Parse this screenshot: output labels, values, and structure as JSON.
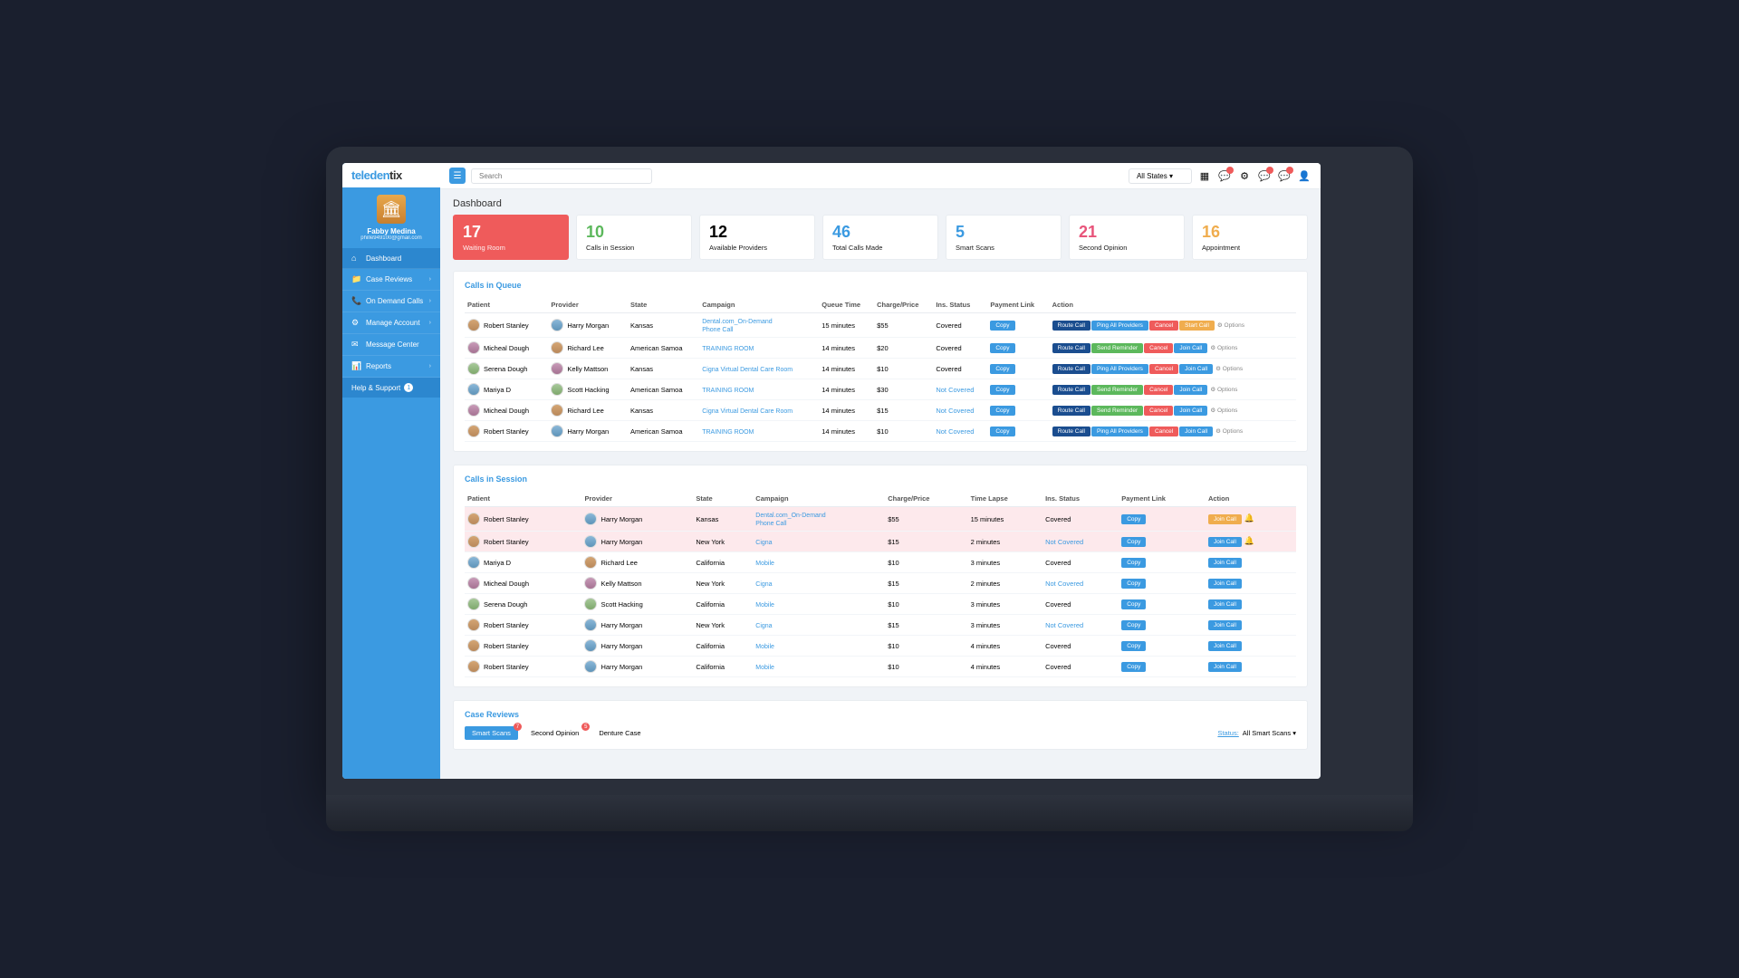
{
  "brand": {
    "prefix": "telede",
    "mid": "n",
    "suffix": "tix"
  },
  "profile": {
    "name": "Fabby Medina",
    "email": "phille949100@gmail.com"
  },
  "nav": [
    {
      "icon": "⌂",
      "label": "Dashboard",
      "active": true
    },
    {
      "icon": "📁",
      "label": "Case Reviews",
      "chevron": true
    },
    {
      "icon": "📞",
      "label": "On Demand Calls",
      "chevron": true
    },
    {
      "icon": "⚙",
      "label": "Manage Account",
      "chevron": true
    },
    {
      "icon": "✉",
      "label": "Message Center"
    },
    {
      "icon": "📊",
      "label": "Reports",
      "chevron": true
    }
  ],
  "help": {
    "label": "Help & Support",
    "badge": "1"
  },
  "topbar": {
    "search_placeholder": "Search",
    "state_filter": "All States"
  },
  "page_title": "Dashboard",
  "stats": [
    {
      "num": "17",
      "label": "Waiting Room",
      "variant": "red"
    },
    {
      "num": "10",
      "label": "Calls in Session",
      "color": "green"
    },
    {
      "num": "12",
      "label": "Available Providers"
    },
    {
      "num": "46",
      "label": "Total Calls Made",
      "color": "blue"
    },
    {
      "num": "5",
      "label": "Smart Scans",
      "color": "blue"
    },
    {
      "num": "21",
      "label": "Second Opinion",
      "color": "pink"
    },
    {
      "num": "16",
      "label": "Appointment",
      "color": "orange"
    }
  ],
  "queue": {
    "title": "Calls in Queue",
    "headers": [
      "Patient",
      "Provider",
      "State",
      "Campaign",
      "Queue Time",
      "Charge/Price",
      "Ins. Status",
      "Payment Link",
      "Action"
    ],
    "rows": [
      {
        "patient": "Robert Stanley",
        "pa": "a1",
        "provider": "Harry Morgan",
        "pra": "a2",
        "state": "Kansas",
        "campaign": "Dental.com_On-Demand",
        "campaign_sub": "Phone Call",
        "time": "15 minutes",
        "price": "$55",
        "ins": "Covered",
        "actions": [
          "route",
          "ping",
          "cancel",
          "start"
        ],
        "options": true
      },
      {
        "patient": "Micheal Dough",
        "pa": "a3",
        "provider": "Richard Lee",
        "pra": "a1",
        "state": "American Samoa",
        "campaign": "TRAINING ROOM",
        "time": "14 minutes",
        "price": "$20",
        "ins": "Covered",
        "actions": [
          "route",
          "send",
          "cancel",
          "join"
        ],
        "options": true
      },
      {
        "patient": "Serena Dough",
        "pa": "a4",
        "provider": "Kelly Mattson",
        "pra": "a3",
        "state": "Kansas",
        "campaign": "Cigna Virtual Dental Care Room",
        "time": "14 minutes",
        "price": "$10",
        "ins": "Covered",
        "actions": [
          "route",
          "ping",
          "cancel",
          "join"
        ],
        "options": true
      },
      {
        "patient": "Mariya D",
        "pa": "a2",
        "provider": "Scott Hacking",
        "pra": "a4",
        "state": "American Samoa",
        "campaign": "TRAINING ROOM",
        "time": "14 minutes",
        "price": "$30",
        "ins": "Not Covered",
        "nc": true,
        "actions": [
          "route",
          "send",
          "cancel",
          "join"
        ],
        "options": true
      },
      {
        "patient": "Micheal Dough",
        "pa": "a3",
        "provider": "Richard Lee",
        "pra": "a1",
        "state": "Kansas",
        "campaign": "Cigna Virtual Dental Care Room",
        "time": "14 minutes",
        "price": "$15",
        "ins": "Not Covered",
        "nc": true,
        "actions": [
          "route",
          "send",
          "cancel",
          "join"
        ],
        "options": true
      },
      {
        "patient": "Robert Stanley",
        "pa": "a1",
        "provider": "Harry Morgan",
        "pra": "a2",
        "state": "American Samoa",
        "campaign": "TRAINING ROOM",
        "time": "14 minutes",
        "price": "$10",
        "ins": "Not Covered",
        "nc": true,
        "actions": [
          "route",
          "ping",
          "cancel",
          "join"
        ],
        "options": true
      }
    ]
  },
  "session": {
    "title": "Calls in Session",
    "headers": [
      "Patient",
      "Provider",
      "State",
      "Campaign",
      "Charge/Price",
      "Time Lapse",
      "Ins. Status",
      "Payment Link",
      "Action"
    ],
    "rows": [
      {
        "patient": "Robert Stanley",
        "pa": "a1",
        "provider": "Harry Morgan",
        "pra": "a2",
        "state": "Kansas",
        "campaign": "Dental.com_On-Demand",
        "campaign_sub": "Phone Call",
        "price": "$55",
        "time": "15 minutes",
        "ins": "Covered",
        "btn": "join-warn",
        "bell": true,
        "highlight": true
      },
      {
        "patient": "Robert Stanley",
        "pa": "a1",
        "provider": "Harry Morgan",
        "pra": "a2",
        "state": "New York",
        "campaign": "Cigna",
        "price": "$15",
        "time": "2 minutes",
        "ins": "Not Covered",
        "nc": true,
        "btn": "join",
        "bell": true,
        "highlight": true
      },
      {
        "patient": "Mariya D",
        "pa": "a2",
        "provider": "Richard Lee",
        "pra": "a1",
        "state": "California",
        "campaign": "Mobile",
        "price": "$10",
        "time": "3 minutes",
        "ins": "Covered",
        "btn": "join"
      },
      {
        "patient": "Micheal Dough",
        "pa": "a3",
        "provider": "Kelly Mattson",
        "pra": "a3",
        "state": "New York",
        "campaign": "Cigna",
        "price": "$15",
        "time": "2 minutes",
        "ins": "Not Covered",
        "nc": true,
        "btn": "join"
      },
      {
        "patient": "Serena Dough",
        "pa": "a4",
        "provider": "Scott Hacking",
        "pra": "a4",
        "state": "California",
        "campaign": "Mobile",
        "price": "$10",
        "time": "3 minutes",
        "ins": "Covered",
        "btn": "join"
      },
      {
        "patient": "Robert Stanley",
        "pa": "a1",
        "provider": "Harry Morgan",
        "pra": "a2",
        "state": "New York",
        "campaign": "Cigna",
        "price": "$15",
        "time": "3 minutes",
        "ins": "Not Covered",
        "nc": true,
        "btn": "join"
      },
      {
        "patient": "Robert Stanley",
        "pa": "a1",
        "provider": "Harry Morgan",
        "pra": "a2",
        "state": "California",
        "campaign": "Mobile",
        "price": "$10",
        "time": "4 minutes",
        "ins": "Covered",
        "btn": "join"
      },
      {
        "patient": "Robert Stanley",
        "pa": "a1",
        "provider": "Harry Morgan",
        "pra": "a2",
        "state": "California",
        "campaign": "Mobile",
        "price": "$10",
        "time": "4 minutes",
        "ins": "Covered",
        "btn": "join"
      }
    ]
  },
  "case_reviews": {
    "title": "Case Reviews",
    "tabs": [
      {
        "label": "Smart Scans",
        "active": true,
        "badge": "7"
      },
      {
        "label": "Second Opinion",
        "badge": "5"
      },
      {
        "label": "Denture Case"
      }
    ],
    "status_label": "Status:",
    "status_value": "All Smart Scans"
  },
  "action_labels": {
    "route": "Route Call",
    "ping": "Ping All Providers",
    "send": "Send Reminder",
    "cancel": "Cancel",
    "start": "Start Call",
    "join": "Join Call",
    "copy": "Copy",
    "options": "⚙ Options"
  },
  "action_colors": {
    "route": "btn-route",
    "ping": "btn-ping",
    "send": "btn-send",
    "cancel": "btn-cancel",
    "start": "btn-start",
    "join": "btn-join",
    "join-warn": "btn-join-warn"
  }
}
